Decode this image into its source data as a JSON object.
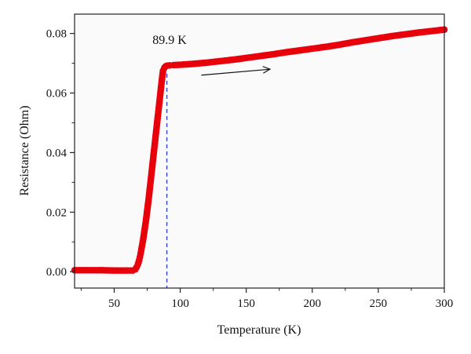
{
  "chart_data": {
    "type": "scatter",
    "title": "",
    "xlabel": "Temperature (K)",
    "ylabel": "Resistance (Ohm)",
    "xlim": [
      20,
      300
    ],
    "ylim": [
      -0.0055,
      0.0865
    ],
    "x_ticks": [
      50,
      100,
      150,
      200,
      250,
      300
    ],
    "y_ticks": [
      0.0,
      0.02,
      0.04,
      0.06,
      0.08
    ],
    "x_tick_labels": [
      "50",
      "100",
      "150",
      "200",
      "250",
      "300"
    ],
    "y_tick_labels": [
      "0.00",
      "0.02",
      "0.04",
      "0.06",
      "0.08"
    ],
    "grid": false,
    "series": [
      {
        "color": "#e8000b",
        "x": [
          20,
          30,
          40,
          50,
          60,
          64,
          66,
          67,
          68,
          69,
          70,
          71,
          72,
          73,
          74,
          75,
          76,
          77,
          78,
          79,
          80,
          81,
          82,
          83,
          84,
          85,
          86,
          87,
          88,
          89,
          90,
          92,
          95,
          100,
          110,
          120,
          130,
          140,
          150,
          160,
          170,
          180,
          190,
          200,
          210,
          220,
          230,
          240,
          250,
          260,
          270,
          280,
          290,
          300
        ],
        "y": [
          0.0005,
          0.0005,
          0.0005,
          0.0004,
          0.0004,
          0.0004,
          0.0008,
          0.0015,
          0.0025,
          0.004,
          0.006,
          0.0085,
          0.011,
          0.014,
          0.017,
          0.0205,
          0.024,
          0.028,
          0.032,
          0.036,
          0.04,
          0.044,
          0.048,
          0.052,
          0.056,
          0.06,
          0.064,
          0.0675,
          0.0685,
          0.069,
          0.0692,
          0.0693,
          0.0694,
          0.0695,
          0.0698,
          0.0702,
          0.0707,
          0.0712,
          0.0718,
          0.0724,
          0.073,
          0.0737,
          0.0743,
          0.0749,
          0.0755,
          0.0762,
          0.077,
          0.0777,
          0.0784,
          0.0791,
          0.0797,
          0.0803,
          0.0808,
          0.0813
        ]
      }
    ],
    "annotations": {
      "tc_value": 89.9,
      "tc_label": "89.9 K",
      "arrow_from": [
        116,
        0.066
      ],
      "arrow_to": [
        168,
        0.068
      ]
    }
  }
}
